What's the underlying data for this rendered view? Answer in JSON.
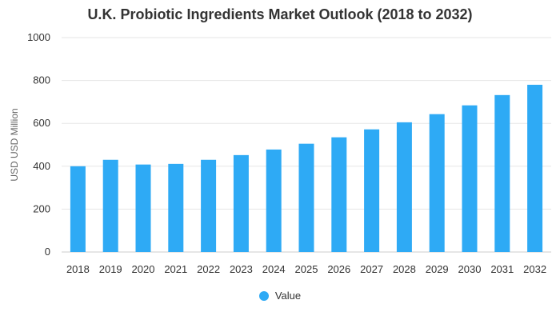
{
  "chart_data": {
    "type": "bar",
    "title": "U.K. Probiotic Ingredients Market Outlook (2018 to 2032)",
    "ylabel": "USD USD Million",
    "xlabel": "",
    "ylim": [
      0,
      1000
    ],
    "yticks": [
      0,
      200,
      400,
      600,
      800,
      1000
    ],
    "grid": true,
    "legend_position": "bottom",
    "bar_color": "#2eaaf5",
    "categories": [
      "2018",
      "2019",
      "2020",
      "2021",
      "2022",
      "2023",
      "2024",
      "2025",
      "2026",
      "2027",
      "2028",
      "2029",
      "2030",
      "2031",
      "2032"
    ],
    "series": [
      {
        "name": "Value",
        "values": [
          400,
          430,
          408,
          411,
          430,
          452,
          478,
          505,
          535,
          572,
          605,
          643,
          684,
          732,
          780
        ]
      }
    ]
  }
}
